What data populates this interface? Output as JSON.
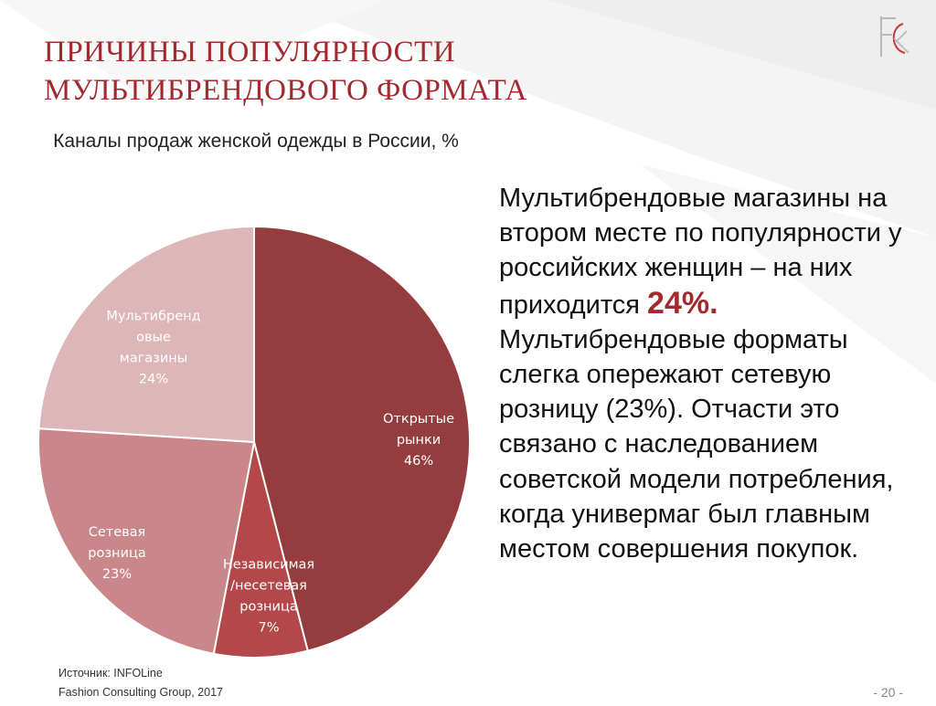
{
  "slide": {
    "title": "ПРИЧИНЫ ПОПУЛЯРНОСТИ МУЛЬТИБРЕНДОВОГО ФОРМАТА",
    "logo_icon": "fcg-logo-icon",
    "source": "Источник: INFOLine",
    "company": "Fashion Consulting Group, 2017",
    "page_number": "- 20 -",
    "title_color": "#a02a2e"
  },
  "description": {
    "part1": "Мультибрендовые магазины на втором месте по популярности у российских женщин – на них приходится ",
    "highlight": "24%.",
    "part2": " Мультибрендовые форматы слегка опережают сетевую розницу (23%). Отчасти это связано с наследованием советской модели потребления, когда универмаг был главным местом совершения покупок.",
    "highlight_color": "#a02a2e"
  },
  "chart_data": {
    "type": "pie",
    "title": "Каналы продаж женской одежды в России, %",
    "start": "top, clockwise",
    "slices": [
      {
        "lines": [
          "Открытые",
          "рынки",
          "46%"
        ],
        "value": 46,
        "color": "#943c3e",
        "text_color": "#ffffff"
      },
      {
        "lines": [
          "Независимая",
          "/несетевая",
          "розница",
          "7%"
        ],
        "value": 7,
        "color": "#b4474a",
        "text_color": "#ffffff"
      },
      {
        "lines": [
          "Сетевая",
          "розница",
          "23%"
        ],
        "value": 23,
        "color": "#c98789",
        "text_color": "#ffffff"
      },
      {
        "lines": [
          "Мультибренд",
          "овые",
          "магазины",
          "24%"
        ],
        "value": 24,
        "color": "#dcb6b8",
        "text_color": "#ffffff"
      }
    ]
  }
}
